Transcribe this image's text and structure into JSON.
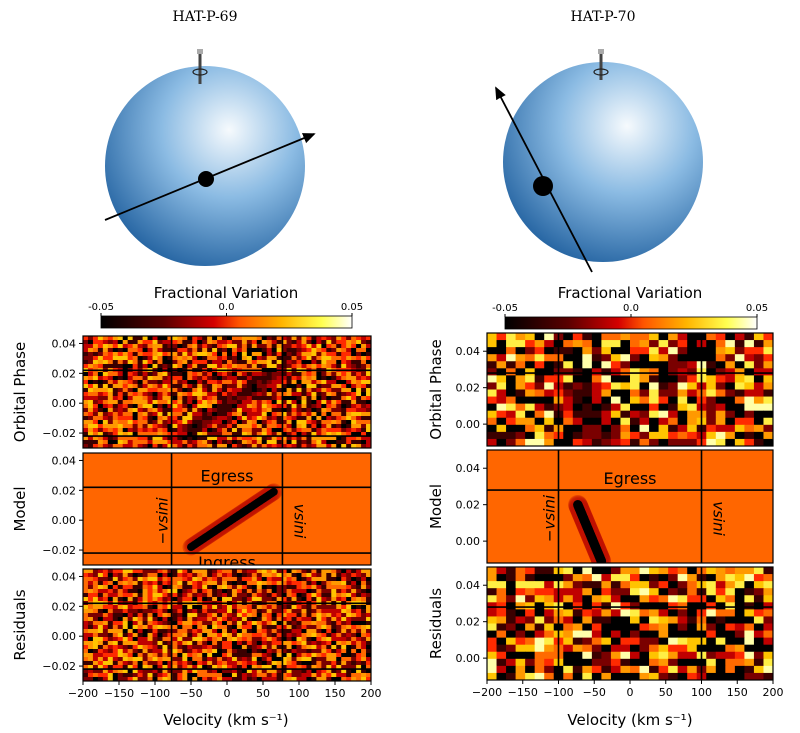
{
  "chart_data": [
    {
      "type": "heatmap",
      "title": "HAT-P-69",
      "colorbar": {
        "label": "Fractional Variation",
        "ticks": [
          "-0.05",
          "0.0",
          "0.05"
        ],
        "range": [
          -0.05,
          0.05
        ]
      },
      "xlabel": "Velocity (km s⁻¹)",
      "xlim": [
        -200,
        200
      ],
      "xticks": [
        -200,
        -150,
        -100,
        -50,
        0,
        50,
        100,
        150,
        200
      ],
      "ylim": [
        -0.03,
        0.045
      ],
      "yticks": [
        -0.02,
        0.0,
        0.02,
        0.04
      ],
      "ytick_labels": [
        "−0.02",
        "0.00",
        "0.02",
        "0.04"
      ],
      "vsini": 77,
      "ingress_phase": -0.022,
      "egress_phase": 0.022,
      "track": {
        "v_start": -50,
        "phase_start": -0.018,
        "v_end": 65,
        "phase_end": 0.019,
        "width_kms": 10
      },
      "panels": [
        {
          "ylabel": "Orbital Phase",
          "kind": "data"
        },
        {
          "ylabel": "Model",
          "kind": "model",
          "annotations": {
            "egress": "Egress",
            "ingress": "Ingress",
            "minus_vsini": "−vsini",
            "vsini": "vsini"
          }
        },
        {
          "ylabel": "Residuals",
          "kind": "residuals"
        }
      ]
    },
    {
      "type": "heatmap",
      "title": "HAT-P-70",
      "colorbar": {
        "label": "Fractional Variation",
        "ticks": [
          "-0.05",
          "0.0",
          "0.05"
        ],
        "range": [
          -0.05,
          0.05
        ]
      },
      "xlabel": "Velocity (km s⁻¹)",
      "xlim": [
        -200,
        200
      ],
      "xticks": [
        -200,
        -150,
        -100,
        -50,
        0,
        50,
        100,
        150,
        200
      ],
      "ylim": [
        -0.012,
        0.05
      ],
      "yticks": [
        0.0,
        0.02,
        0.04
      ],
      "ytick_labels": [
        "0.00",
        "0.02",
        "0.04"
      ],
      "vsini": 100,
      "egress_phase": 0.028,
      "track": {
        "v_start": -73,
        "phase_start": 0.02,
        "v_end": -40,
        "phase_end": -0.011,
        "width_kms": 12
      },
      "panels": [
        {
          "ylabel": "Orbital Phase",
          "kind": "data"
        },
        {
          "ylabel": "Model",
          "kind": "model",
          "annotations": {
            "egress": "Egress",
            "minus_vsini": "−vsini",
            "vsini": "vsini"
          }
        },
        {
          "ylabel": "Residuals",
          "kind": "residuals"
        }
      ]
    }
  ],
  "colors": {
    "background_model": "#ff6600",
    "grid_line": "#000000",
    "star_edge": "#1f5f9e",
    "star_center": "#f4f9fd"
  }
}
